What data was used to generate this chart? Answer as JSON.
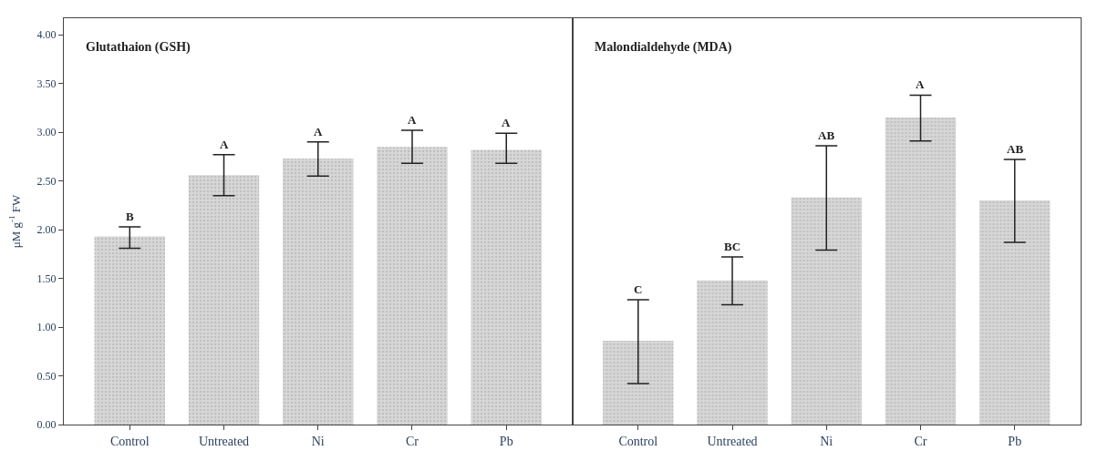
{
  "chart_data": [
    {
      "type": "bar",
      "title": "Glutathaion (GSH)",
      "ylabel": "μM g$^{-1}$ FW",
      "categories": [
        "Control",
        "Untreated",
        "Ni",
        "Cr",
        "Pb"
      ],
      "values": [
        1.93,
        2.56,
        2.73,
        2.85,
        2.82
      ],
      "errors": [
        [
          1.81,
          2.03
        ],
        [
          2.35,
          2.77
        ],
        [
          2.55,
          2.9
        ],
        [
          2.68,
          3.02
        ],
        [
          2.68,
          2.99
        ]
      ],
      "color": "#d6d6d6",
      "ylim": [
        0,
        4.17
      ],
      "yticks": [
        {
          "value": 0,
          "label": "0.00"
        },
        {
          "value": 0.5,
          "label": "0.50"
        },
        {
          "value": 1,
          "label": "1.00"
        },
        {
          "value": 1.5,
          "label": "1.50"
        },
        {
          "value": 2,
          "label": "2.00"
        },
        {
          "value": 2.5,
          "label": "2.50"
        },
        {
          "value": 3,
          "label": "3.00"
        },
        {
          "value": 3.5,
          "label": "3.50"
        },
        {
          "value": 4,
          "label": "4.00"
        }
      ],
      "annotations": [
        {
          "text": "B",
          "x": "Control",
          "y": 2.03
        },
        {
          "text": "A",
          "x": "Untreated",
          "y": 2.77
        },
        {
          "text": "A",
          "x": "Ni",
          "y": 2.9
        },
        {
          "text": "A",
          "x": "Cr",
          "y": 3.02
        },
        {
          "text": "A",
          "x": "Pb",
          "y": 2.99
        }
      ],
      "legend": false
    },
    {
      "type": "bar",
      "title": "Malondialdehyde (MDA)",
      "categories": [
        "Control",
        "Untreated",
        "Ni",
        "Cr",
        "Pb"
      ],
      "values": [
        0.86,
        1.48,
        2.33,
        3.15,
        2.3
      ],
      "errors": [
        [
          0.42,
          1.28
        ],
        [
          1.23,
          1.72
        ],
        [
          1.79,
          2.86
        ],
        [
          2.91,
          3.38
        ],
        [
          1.87,
          2.72
        ]
      ],
      "color": "#d6d6d6",
      "ylim": [
        0,
        4.17
      ],
      "annotations": [
        {
          "text": "C",
          "x": "Control",
          "y": 1.28
        },
        {
          "text": "BC",
          "x": "Untreated",
          "y": 1.72
        },
        {
          "text": "AB",
          "x": "Ni",
          "y": 2.86
        },
        {
          "text": "A",
          "x": "Cr",
          "y": 3.38
        },
        {
          "text": "AB",
          "x": "Pb",
          "y": 2.72
        }
      ],
      "tick_labels": "x",
      "legend": false
    }
  ]
}
